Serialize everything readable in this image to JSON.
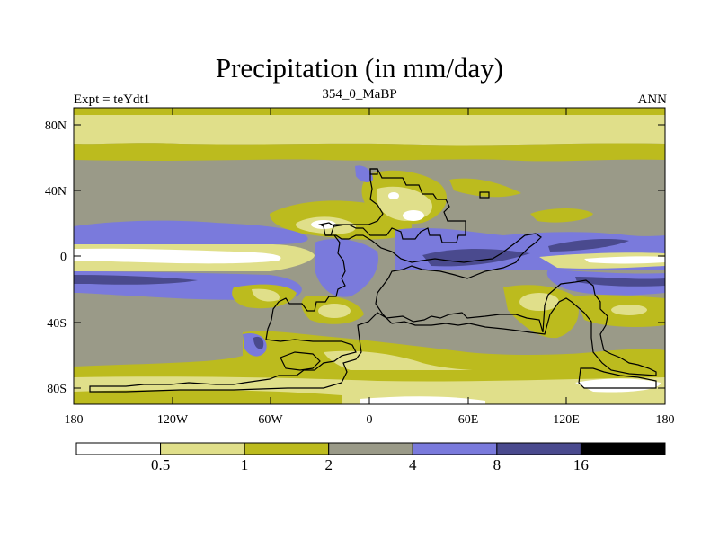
{
  "title": "Precipitation (in mm/day)",
  "subtitle_left": "Expt = teYdt1",
  "subtitle_center": "354_0_MaBP",
  "subtitle_right": "ANN",
  "y_ticks": [
    "80N",
    "40N",
    "0",
    "40S",
    "80S"
  ],
  "x_ticks": [
    "180",
    "120W",
    "60W",
    "0",
    "60E",
    "120E",
    "180"
  ],
  "colorbar": {
    "labels": [
      "0.5",
      "1",
      "2",
      "4",
      "8",
      "16"
    ],
    "colors": [
      "#ffffff",
      "#e0df8a",
      "#bcbb1e",
      "#9a9a88",
      "#7a7adc",
      "#4a4a8e",
      "#000000"
    ]
  },
  "colors": {
    "white": "#ffffff",
    "light_yellow": "#e0df8a",
    "olive": "#bcbb1e",
    "gray": "#9a9a88",
    "blue": "#7a7adc",
    "dark_blue": "#4a4a8e",
    "black": "#000000"
  }
}
